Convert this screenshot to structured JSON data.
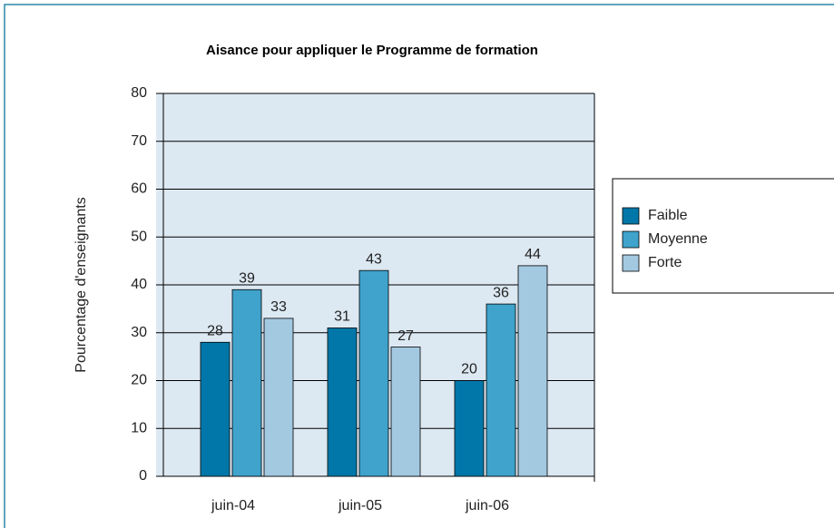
{
  "chart_data": {
    "type": "bar",
    "title": "Aisance pour appliquer le Programme de formation",
    "y_label": "Pourcentage d'enseignants",
    "categories": [
      "juin-04",
      "juin-05",
      "juin-06"
    ],
    "series": [
      {
        "name": "Faible",
        "color": "#0077a8",
        "values": [
          28,
          31,
          20
        ]
      },
      {
        "name": "Moyenne",
        "color": "#3fa3cc",
        "values": [
          39,
          43,
          36
        ]
      },
      {
        "name": "Forte",
        "color": "#a3c9e1",
        "values": [
          33,
          27,
          44
        ]
      }
    ],
    "ylim": [
      0,
      80
    ],
    "yticks": [
      0,
      10,
      20,
      30,
      40,
      50,
      60,
      70,
      80
    ],
    "grid": true,
    "legend": "right"
  }
}
